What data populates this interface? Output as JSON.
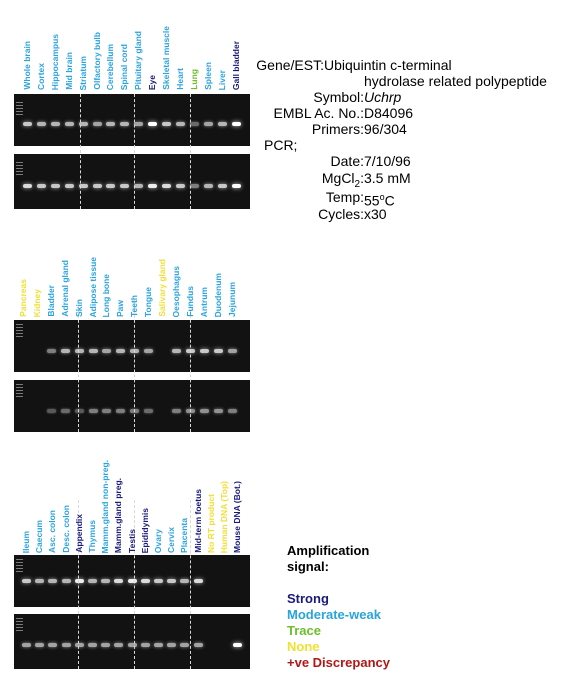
{
  "colors": {
    "strong": "#1a1a7a",
    "moderate": "#2aa4dc",
    "trace": "#6cbf2a",
    "none": "#f0e032",
    "discrepancy": "#b01818"
  },
  "info": {
    "gene_label": "Gene/EST:",
    "gene_line1": "Ubiquintin c-terminal",
    "gene_line2": "hydrolase related polypeptide",
    "symbol_label": "Symbol:",
    "symbol_value": "Uchrp",
    "embl_label": "EMBL Ac. No.:",
    "embl_value": "D84096",
    "primers_label": "Primers:",
    "primers_value": "96/304",
    "pcr_label": "PCR;",
    "date_label": "Date:",
    "date_value": "7/10/96",
    "mgcl2_value": "3.5 mM",
    "temp_label": "Temp:",
    "cycles_label": "Cycles:",
    "cycles_value": "x30"
  },
  "legend": {
    "title_line1": "Amplification",
    "title_line2": "signal:",
    "strong": "Strong",
    "moderate": "Moderate-weak",
    "trace": "Trace",
    "none": "None",
    "discrepancy": "+ve Discrepancy"
  },
  "panels": [
    {
      "lanes": [
        {
          "label": "Whole brain",
          "signal": "moderate",
          "top": 0.7,
          "bottom": 0.8
        },
        {
          "label": "Cortex",
          "signal": "moderate",
          "top": 0.6,
          "bottom": 0.7
        },
        {
          "label": "Hippocampus",
          "signal": "moderate",
          "top": 0.6,
          "bottom": 0.7
        },
        {
          "label": "Mid brain",
          "signal": "moderate",
          "top": 0.6,
          "bottom": 0.7
        },
        {
          "label": "Striatum",
          "signal": "moderate",
          "top": 0.6,
          "bottom": 0.7
        },
        {
          "label": "Olfactory bulb",
          "signal": "moderate",
          "top": 0.5,
          "bottom": 0.7
        },
        {
          "label": "Cerebellum",
          "signal": "moderate",
          "top": 0.6,
          "bottom": 0.7
        },
        {
          "label": "Spinal cord",
          "signal": "moderate",
          "top": 0.6,
          "bottom": 0.7
        },
        {
          "label": "Pituitary gland",
          "signal": "moderate",
          "top": 0.5,
          "bottom": 0.6
        },
        {
          "label": "Eye",
          "signal": "strong",
          "top": 1.0,
          "bottom": 0.9
        },
        {
          "label": "Skeletal muscle",
          "signal": "moderate",
          "top": 0.7,
          "bottom": 0.8
        },
        {
          "label": "Heart",
          "signal": "moderate",
          "top": 0.6,
          "bottom": 0.7
        },
        {
          "label": "Lung",
          "signal": "trace",
          "top": 0.2,
          "bottom": 0.3
        },
        {
          "label": "Spleen",
          "signal": "moderate",
          "top": 0.5,
          "bottom": 0.6
        },
        {
          "label": "Liver",
          "signal": "moderate",
          "top": 0.6,
          "bottom": 0.7
        },
        {
          "label": "Gall bladder",
          "signal": "strong",
          "top": 1.0,
          "bottom": 1.0
        }
      ]
    },
    {
      "lanes": [
        {
          "label": "Pancreas",
          "signal": "none",
          "top": 0,
          "bottom": 0
        },
        {
          "label": "Kidney",
          "signal": "none",
          "top": 0,
          "bottom": 0
        },
        {
          "label": "Bladder",
          "signal": "moderate",
          "top": 0.3,
          "bottom": 0.1
        },
        {
          "label": "Adrenal gland",
          "signal": "moderate",
          "top": 0.6,
          "bottom": 0.2
        },
        {
          "label": "Skin",
          "signal": "moderate",
          "top": 0.6,
          "bottom": 0.1
        },
        {
          "label": "Adipose tissue",
          "signal": "moderate",
          "top": 0.6,
          "bottom": 0.3
        },
        {
          "label": "Long bone",
          "signal": "moderate",
          "top": 0.5,
          "bottom": 0.3
        },
        {
          "label": "Paw",
          "signal": "moderate",
          "top": 0.6,
          "bottom": 0.3
        },
        {
          "label": "Teeth",
          "signal": "moderate",
          "top": 0.6,
          "bottom": 0.3
        },
        {
          "label": "Tongue",
          "signal": "moderate",
          "top": 0.5,
          "bottom": 0.2
        },
        {
          "label": "Salivary gland",
          "signal": "none",
          "top": 0,
          "bottom": 0
        },
        {
          "label": "Oesophagus",
          "signal": "moderate",
          "top": 0.6,
          "bottom": 0.3
        },
        {
          "label": "Fundus",
          "signal": "moderate",
          "top": 0.7,
          "bottom": 0.4
        },
        {
          "label": "Antrum",
          "signal": "moderate",
          "top": 0.7,
          "bottom": 0.4
        },
        {
          "label": "Duodenum",
          "signal": "moderate",
          "top": 0.7,
          "bottom": 0.4
        },
        {
          "label": "Jejunum",
          "signal": "moderate",
          "top": 0.5,
          "bottom": 0.3
        }
      ]
    },
    {
      "lanes": [
        {
          "label": "Ileum",
          "signal": "moderate",
          "top": 0.7,
          "bottom": 0.5
        },
        {
          "label": "Caecum",
          "signal": "moderate",
          "top": 0.6,
          "bottom": 0.5
        },
        {
          "label": "Asc. colon",
          "signal": "moderate",
          "top": 0.6,
          "bottom": 0.5
        },
        {
          "label": "Desc. colon",
          "signal": "moderate",
          "top": 0.6,
          "bottom": 0.5
        },
        {
          "label": "Appendix",
          "signal": "strong",
          "top": 0.9,
          "bottom": 0.5
        },
        {
          "label": "Thymus",
          "signal": "moderate",
          "top": 0.6,
          "bottom": 0.5
        },
        {
          "label": "Mamm.gland non-preg.",
          "signal": "moderate",
          "top": 0.6,
          "bottom": 0.5
        },
        {
          "label": "Mamm.gland preg.",
          "signal": "strong",
          "top": 0.8,
          "bottom": 0.5
        },
        {
          "label": "Testis",
          "signal": "strong",
          "top": 0.9,
          "bottom": 0.5
        },
        {
          "label": "Epididymis",
          "signal": "strong",
          "top": 0.8,
          "bottom": 0.5
        },
        {
          "label": "Ovary",
          "signal": "moderate",
          "top": 0.7,
          "bottom": 0.5
        },
        {
          "label": "Cervix",
          "signal": "moderate",
          "top": 0.7,
          "bottom": 0.5
        },
        {
          "label": "Placenta",
          "signal": "moderate",
          "top": 0.6,
          "bottom": 0.5
        },
        {
          "label": "Mid-term foetus",
          "signal": "strong",
          "top": 0.8,
          "bottom": 0.5
        },
        {
          "label": "No RT product",
          "signal": "none",
          "top": 0,
          "bottom": 0
        },
        {
          "label": "Human DNA (Top)",
          "signal": "none",
          "top": 0,
          "bottom": 0
        },
        {
          "label": "Mouse DNA (Bot.)",
          "signal": "strong",
          "top": 0,
          "bottom": 1.0
        }
      ]
    }
  ]
}
